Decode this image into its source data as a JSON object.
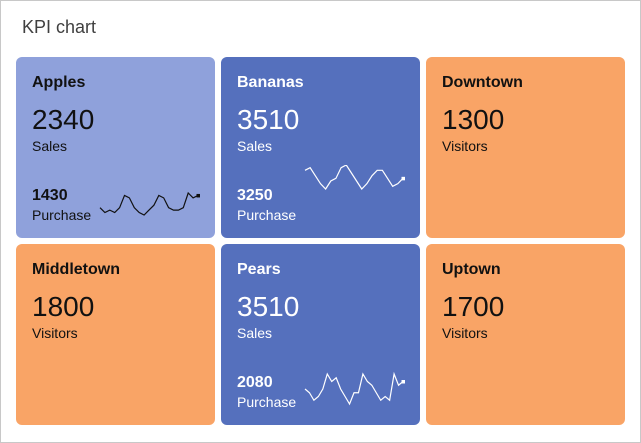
{
  "title": "KPI chart",
  "colors": {
    "light_blue": "#8fa1db",
    "blue": "#5570bd",
    "orange": "#f9a466"
  },
  "tiles": [
    {
      "name": "Apples",
      "value": "2340",
      "label": "Sales",
      "sub_value": "1430",
      "sub_label": "Purchase",
      "bg": "#8fa1db",
      "fg": "#111111",
      "sparkline": [
        3,
        1,
        2,
        1,
        3,
        8,
        7,
        3,
        1,
        0,
        2,
        4,
        8,
        7,
        3,
        2,
        2,
        3,
        9,
        7,
        8
      ]
    },
    {
      "name": "Bananas",
      "value": "3510",
      "label": "Sales",
      "sub_value": "3250",
      "sub_label": "Purchase",
      "bg": "#5570bd",
      "fg": "#ffffff",
      "sparkline": [
        8,
        9,
        6,
        3,
        1,
        4,
        5,
        9,
        10,
        7,
        4,
        1,
        3,
        6,
        8,
        8,
        5,
        2,
        3,
        5
      ]
    },
    {
      "name": "Downtown",
      "value": "1300",
      "label": "Visitors",
      "bg": "#f9a466",
      "fg": "#111111"
    },
    {
      "name": "Middletown",
      "value": "1800",
      "label": "Visitors",
      "bg": "#f9a466",
      "fg": "#111111"
    },
    {
      "name": "Pears",
      "value": "3510",
      "label": "Sales",
      "sub_value": "2080",
      "sub_label": "Purchase",
      "bg": "#5570bd",
      "fg": "#ffffff",
      "sparkline": [
        5,
        4,
        2,
        3,
        5,
        9,
        7,
        8,
        5,
        3,
        1,
        4,
        4,
        9,
        7,
        6,
        4,
        2,
        3,
        2,
        9,
        6,
        7
      ]
    },
    {
      "name": "Uptown",
      "value": "1700",
      "label": "Visitors",
      "bg": "#f9a466",
      "fg": "#111111"
    }
  ]
}
